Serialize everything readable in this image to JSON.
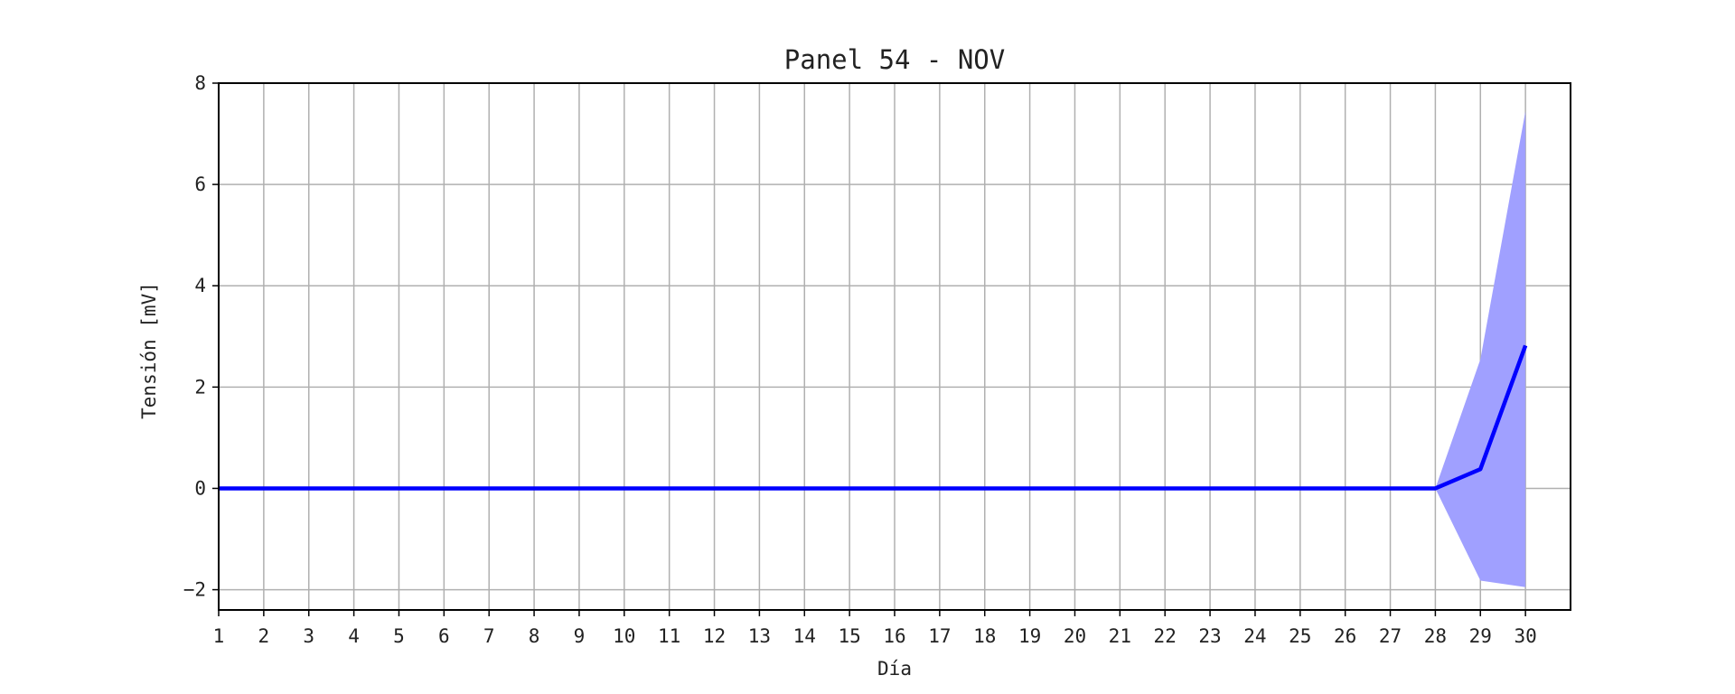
{
  "chart_data": {
    "type": "line",
    "title": "Panel 54 - NOV",
    "xlabel": "Día",
    "ylabel": "Tensión [mV]",
    "xlim": [
      1,
      31
    ],
    "ylim": [
      -2.4,
      8
    ],
    "xticks": [
      1,
      2,
      3,
      4,
      5,
      6,
      7,
      8,
      9,
      10,
      11,
      12,
      13,
      14,
      15,
      16,
      17,
      18,
      19,
      20,
      21,
      22,
      23,
      24,
      25,
      26,
      27,
      28,
      29,
      30
    ],
    "yticks": [
      -2,
      0,
      2,
      4,
      6,
      8
    ],
    "grid": true,
    "legend": "none",
    "series": [
      {
        "color": "#0000ff",
        "x": [
          1,
          2,
          3,
          4,
          5,
          6,
          7,
          8,
          9,
          10,
          11,
          12,
          13,
          14,
          15,
          16,
          17,
          18,
          19,
          20,
          21,
          22,
          23,
          24,
          25,
          26,
          27,
          28,
          29,
          30
        ],
        "values": [
          0,
          0,
          0,
          0,
          0,
          0,
          0,
          0,
          0,
          0,
          0,
          0,
          0,
          0,
          0,
          0,
          0,
          0,
          0,
          0,
          0,
          0,
          0,
          0,
          0,
          0,
          0,
          0,
          0.38,
          2.82
        ],
        "band": {
          "color": "#a0a0ff",
          "x": [
            28,
            29,
            30
          ],
          "lower": [
            0,
            -1.82,
            -1.95
          ],
          "upper": [
            0,
            2.55,
            7.45
          ]
        }
      }
    ]
  }
}
